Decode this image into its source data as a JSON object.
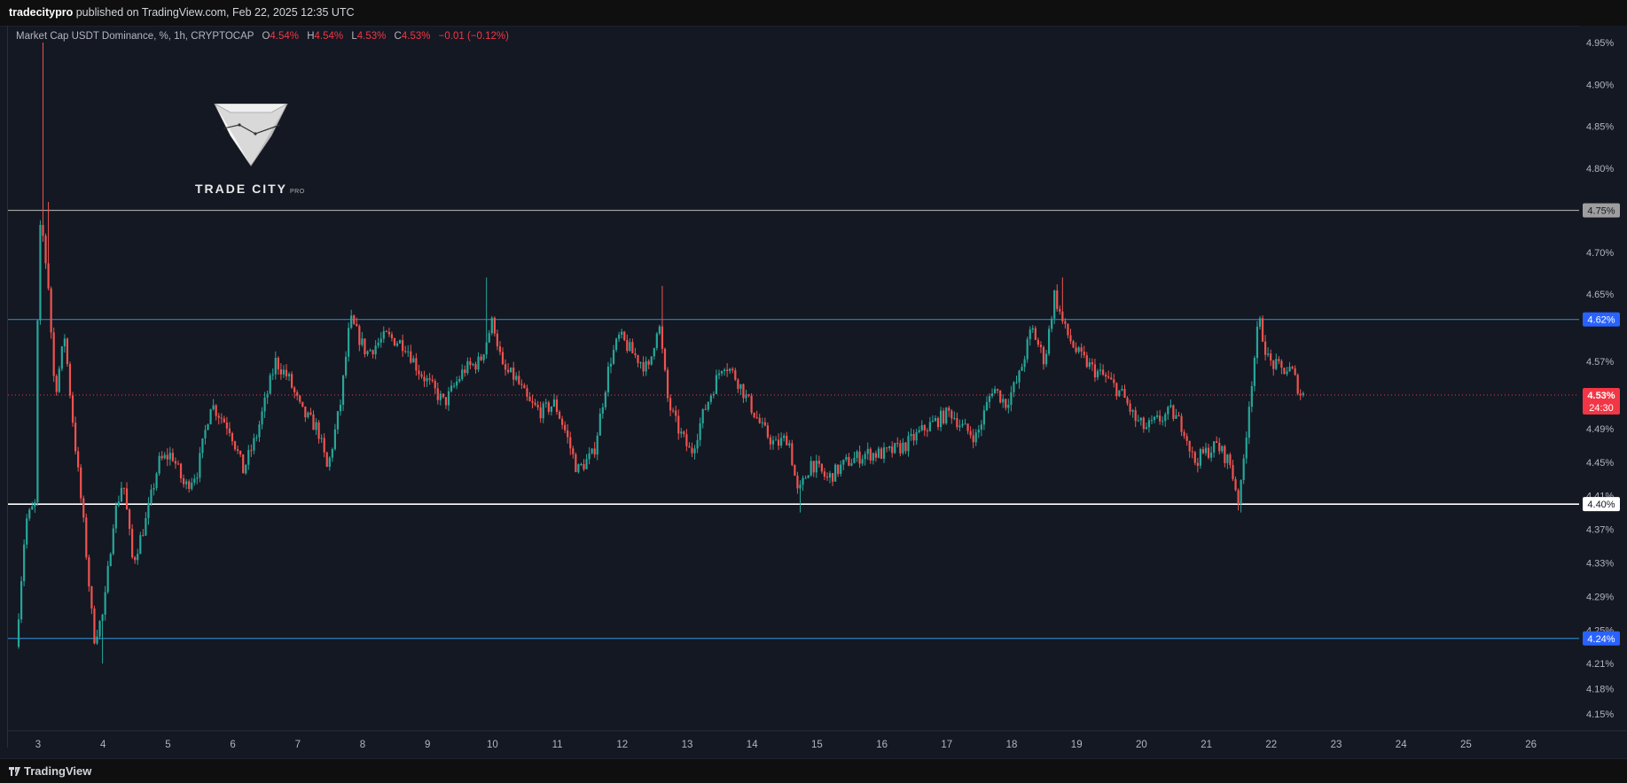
{
  "header": {
    "publisher": "tradecitypro",
    "published_text": "published on TradingView.com, Feb 22, 2025 12:35 UTC"
  },
  "legend": {
    "symbol": "Market Cap USDT Dominance, %, 1h, CRYPTOCAP",
    "o_label": "O",
    "o_value": "4.54%",
    "h_label": "H",
    "h_value": "4.54%",
    "l_label": "L",
    "l_value": "4.53%",
    "c_label": "C",
    "c_value": "4.53%",
    "change": "−0.01 (−0.12%)"
  },
  "logo": {
    "name": "TRADE CITY",
    "suffix": "PRO"
  },
  "footer": {
    "brand": "TradingView"
  },
  "colors": {
    "background": "#141822",
    "up": "#26a69a",
    "down": "#ef5350",
    "level_blue": "#2962ff",
    "level_line_blue": "#2f7fbf",
    "level_gray": "#9e9e9e",
    "level_white": "#ffffff",
    "price_badge_red": "#f23645"
  },
  "chart_data": {
    "type": "candlestick",
    "title": "Market Cap USDT Dominance, %, 1h, CRYPTOCAP",
    "x_ticks": [
      "3",
      "4",
      "5",
      "6",
      "7",
      "8",
      "9",
      "10",
      "11",
      "12",
      "13",
      "14",
      "15",
      "16",
      "17",
      "18",
      "19",
      "20",
      "21",
      "22",
      "23",
      "24",
      "25",
      "26"
    ],
    "y_ticks": [
      "4.95%",
      "4.90%",
      "4.85%",
      "4.80%",
      "4.70%",
      "4.65%",
      "4.57%",
      "4.49%",
      "4.45%",
      "4.41%",
      "4.37%",
      "4.33%",
      "4.29%",
      "4.25%",
      "4.21%",
      "4.18%",
      "4.15%"
    ],
    "ylim": [
      4.13,
      4.97
    ],
    "horizontal_levels": [
      {
        "value": 4.75,
        "label": "4.75%",
        "style": "gray"
      },
      {
        "value": 4.62,
        "label": "4.62%",
        "style": "blue"
      },
      {
        "value": 4.4,
        "label": "4.40%",
        "style": "white"
      },
      {
        "value": 4.24,
        "label": "4.24%",
        "style": "blue"
      }
    ],
    "last_price": {
      "value": 4.53,
      "label": "4.53%",
      "countdown": "24:30"
    },
    "price_path": [
      [
        2.7,
        4.23
      ],
      [
        2.85,
        4.38
      ],
      [
        3.0,
        4.4
      ],
      [
        3.05,
        4.72
      ],
      [
        3.1,
        4.73
      ],
      [
        3.2,
        4.66
      ],
      [
        3.3,
        4.53
      ],
      [
        3.45,
        4.6
      ],
      [
        3.6,
        4.48
      ],
      [
        3.75,
        4.37
      ],
      [
        3.9,
        4.24
      ],
      [
        4.05,
        4.27
      ],
      [
        4.2,
        4.38
      ],
      [
        4.35,
        4.43
      ],
      [
        4.5,
        4.33
      ],
      [
        4.7,
        4.38
      ],
      [
        4.9,
        4.45
      ],
      [
        5.1,
        4.46
      ],
      [
        5.3,
        4.42
      ],
      [
        5.5,
        4.44
      ],
      [
        5.7,
        4.52
      ],
      [
        6.0,
        4.49
      ],
      [
        6.2,
        4.44
      ],
      [
        6.4,
        4.48
      ],
      [
        6.7,
        4.57
      ],
      [
        6.9,
        4.55
      ],
      [
        7.1,
        4.51
      ],
      [
        7.35,
        4.49
      ],
      [
        7.5,
        4.44
      ],
      [
        7.7,
        4.52
      ],
      [
        7.85,
        4.62
      ],
      [
        8.1,
        4.58
      ],
      [
        8.4,
        4.6
      ],
      [
        8.7,
        4.59
      ],
      [
        8.9,
        4.56
      ],
      [
        9.1,
        4.54
      ],
      [
        9.3,
        4.52
      ],
      [
        9.6,
        4.56
      ],
      [
        9.85,
        4.57
      ],
      [
        10.05,
        4.62
      ],
      [
        10.2,
        4.56
      ],
      [
        10.4,
        4.55
      ],
      [
        10.6,
        4.52
      ],
      [
        10.8,
        4.51
      ],
      [
        11.0,
        4.52
      ],
      [
        11.15,
        4.49
      ],
      [
        11.35,
        4.44
      ],
      [
        11.6,
        4.46
      ],
      [
        11.85,
        4.57
      ],
      [
        12.0,
        4.6
      ],
      [
        12.2,
        4.58
      ],
      [
        12.45,
        4.56
      ],
      [
        12.6,
        4.62
      ],
      [
        12.75,
        4.52
      ],
      [
        12.9,
        4.49
      ],
      [
        13.1,
        4.46
      ],
      [
        13.3,
        4.51
      ],
      [
        13.6,
        4.57
      ],
      [
        13.8,
        4.55
      ],
      [
        14.0,
        4.52
      ],
      [
        14.2,
        4.49
      ],
      [
        14.4,
        4.47
      ],
      [
        14.6,
        4.48
      ],
      [
        14.75,
        4.41
      ],
      [
        14.95,
        4.45
      ],
      [
        15.2,
        4.43
      ],
      [
        15.5,
        4.45
      ],
      [
        15.8,
        4.46
      ],
      [
        16.1,
        4.46
      ],
      [
        16.4,
        4.47
      ],
      [
        16.7,
        4.49
      ],
      [
        16.9,
        4.5
      ],
      [
        17.1,
        4.51
      ],
      [
        17.3,
        4.49
      ],
      [
        17.5,
        4.48
      ],
      [
        17.75,
        4.54
      ],
      [
        17.95,
        4.52
      ],
      [
        18.15,
        4.55
      ],
      [
        18.35,
        4.61
      ],
      [
        18.55,
        4.57
      ],
      [
        18.7,
        4.65
      ],
      [
        18.85,
        4.61
      ],
      [
        19.05,
        4.58
      ],
      [
        19.3,
        4.56
      ],
      [
        19.5,
        4.55
      ],
      [
        19.75,
        4.53
      ],
      [
        19.95,
        4.5
      ],
      [
        20.1,
        4.49
      ],
      [
        20.3,
        4.5
      ],
      [
        20.5,
        4.51
      ],
      [
        20.7,
        4.49
      ],
      [
        20.85,
        4.45
      ],
      [
        21.0,
        4.46
      ],
      [
        21.2,
        4.47
      ],
      [
        21.4,
        4.45
      ],
      [
        21.55,
        4.4
      ],
      [
        21.7,
        4.52
      ],
      [
        21.85,
        4.62
      ],
      [
        22.0,
        4.57
      ],
      [
        22.2,
        4.56
      ],
      [
        22.35,
        4.56
      ],
      [
        22.5,
        4.53
      ]
    ],
    "wick_extremes": [
      {
        "x": 3.08,
        "high": 4.95
      },
      {
        "x": 3.15,
        "high": 4.76
      },
      {
        "x": 4.0,
        "low": 4.21
      },
      {
        "x": 9.9,
        "high": 4.67
      },
      {
        "x": 12.6,
        "high": 4.66
      },
      {
        "x": 18.8,
        "high": 4.67
      },
      {
        "x": 21.55,
        "low": 4.39
      },
      {
        "x": 14.75,
        "low": 4.39
      }
    ]
  }
}
